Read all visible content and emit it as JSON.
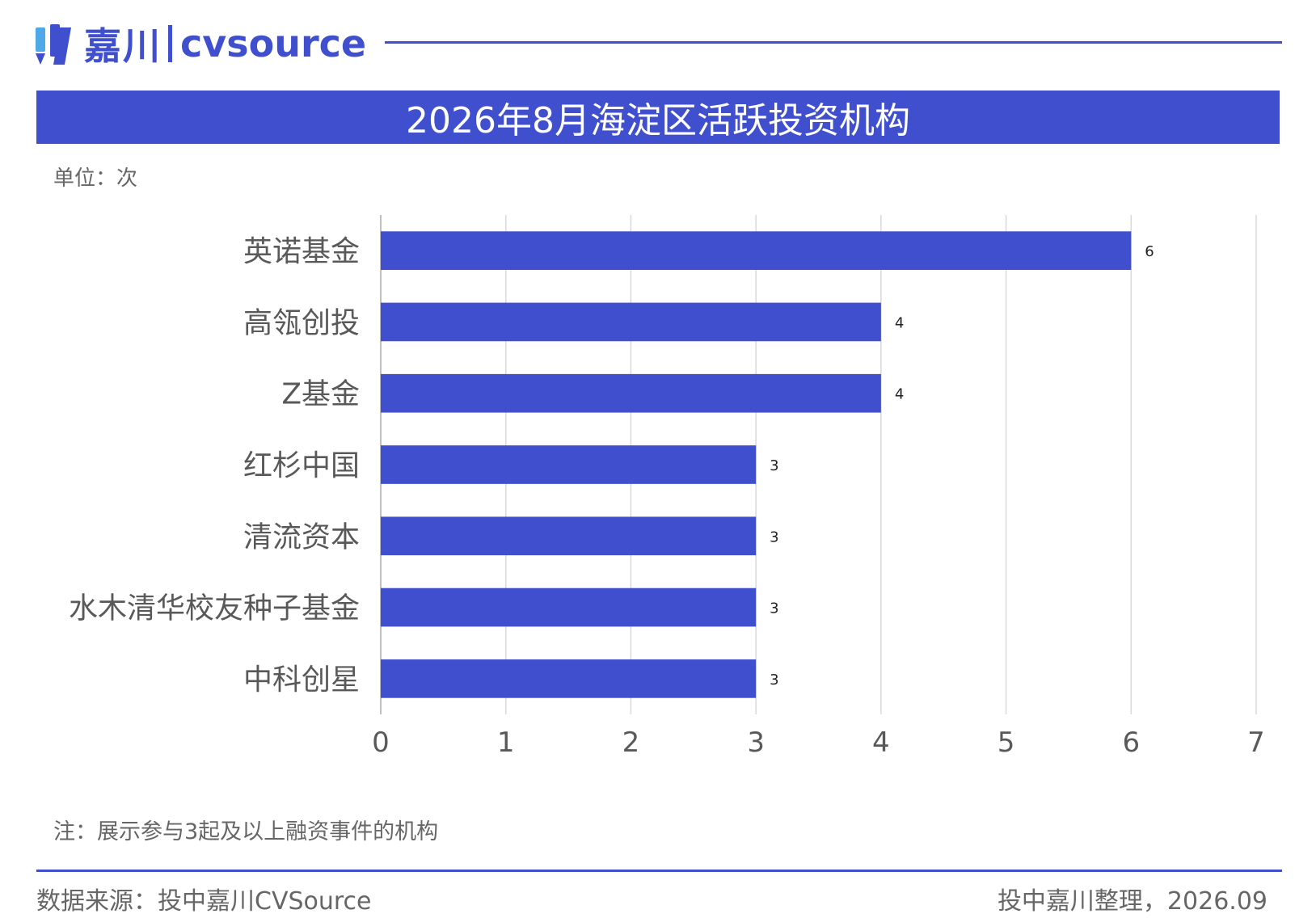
{
  "header": {
    "logo_cn": "嘉川",
    "logo_en": "cvsource",
    "title": "2026年8月海淀区活跃投资机构"
  },
  "unit_label": "单位：次",
  "note": "注：展示参与3起及以上融资事件的机构",
  "footer": {
    "source": "数据来源：投中嘉川CVSource",
    "credit": "投中嘉川整理，2026.09"
  },
  "colors": {
    "accent": "#3f4fce",
    "grid": "#d9d9d9",
    "text": "#666666"
  },
  "chart_data": {
    "type": "bar",
    "orientation": "horizontal",
    "title": "2026年8月海淀区活跃投资机构",
    "unit": "单位：次",
    "categories": [
      "英诺基金",
      "高瓴创投",
      "Z基金",
      "红杉中国",
      "清流资本",
      "水木清华校友种子基金",
      "中科创星"
    ],
    "values": [
      6,
      4,
      4,
      3,
      3,
      3,
      3
    ],
    "xlim": [
      0,
      7
    ],
    "xticks": [
      0,
      1,
      2,
      3,
      4,
      5,
      6,
      7
    ],
    "grid": true,
    "data_labels": true
  }
}
